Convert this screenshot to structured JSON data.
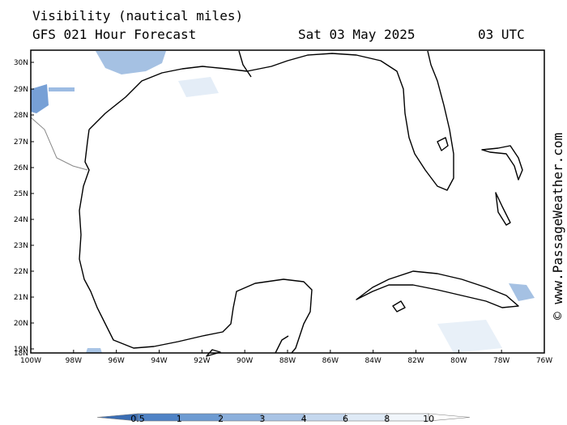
{
  "header": {
    "title": "Visibility (nautical miles)",
    "subtitle": "GFS 021 Hour Forecast",
    "date": "Sat 03 May 2025",
    "time": "03 UTC"
  },
  "map": {
    "lat_labels": [
      "30N",
      "29N",
      "28N",
      "27N",
      "26N",
      "25N",
      "24N",
      "23N",
      "22N",
      "21N",
      "20N",
      "19N",
      "18N"
    ],
    "lon_labels": [
      "100W",
      "98W",
      "96W",
      "94W",
      "92W",
      "90W",
      "88W",
      "86W",
      "84W",
      "82W",
      "80W",
      "78W",
      "76W"
    ]
  },
  "colorbar": {
    "labels": [
      "0.5",
      "1",
      "2",
      "3",
      "4",
      "6",
      "8",
      "10"
    ],
    "colors": [
      "#3a6db3",
      "#4f83c6",
      "#6d9bd2",
      "#8cb0dc",
      "#a9c4e5",
      "#c5d8ee",
      "#dfeaf6",
      "#f1f6fb",
      "#ffffff"
    ]
  },
  "watermark": "© www.PassageWeather.com"
}
